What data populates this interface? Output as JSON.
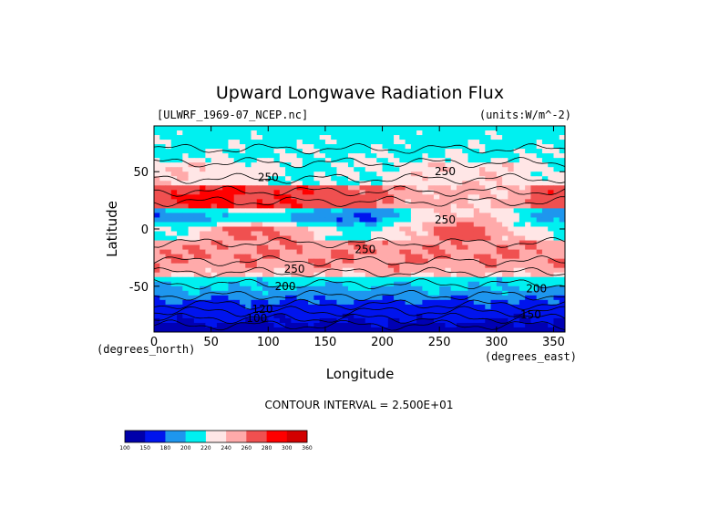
{
  "chart_data": {
    "type": "heatmap",
    "title": "Upward Longwave Radiation Flux",
    "dataset_label": "[ULWRF_1969-07_NCEP.nc]",
    "units_label": "(units:W/m^-2)",
    "xlabel": "Longitude",
    "ylabel": "Latitude",
    "x_units": "(degrees_east)",
    "y_units": "(degrees_north)",
    "xlim": [
      0,
      360
    ],
    "ylim": [
      -90,
      90
    ],
    "x_ticks": [
      0,
      50,
      100,
      150,
      200,
      250,
      300,
      350
    ],
    "y_ticks": [
      -50,
      0,
      50
    ],
    "contour_interval_label": "CONTOUR INTERVAL = 2.500E+01",
    "contour_labels": [
      {
        "text": "250",
        "lon": 100,
        "lat": 45
      },
      {
        "text": "250",
        "lon": 255,
        "lat": 50
      },
      {
        "text": "250",
        "lon": 255,
        "lat": 8
      },
      {
        "text": "250",
        "lon": 185,
        "lat": -18
      },
      {
        "text": "250",
        "lon": 123,
        "lat": -35
      },
      {
        "text": "200",
        "lon": 115,
        "lat": -50
      },
      {
        "text": "200",
        "lon": 335,
        "lat": -52
      },
      {
        "text": "150",
        "lon": 330,
        "lat": -75
      },
      {
        "text": "120",
        "lon": 95,
        "lat": -70
      },
      {
        "text": "100",
        "lon": 90,
        "lat": -78
      }
    ],
    "colorbar": {
      "boundaries": [
        "100",
        "150",
        "180",
        "200",
        "220",
        "240",
        "260",
        "280",
        "300",
        "360"
      ],
      "colors": [
        "#0000aa",
        "#0014ee",
        "#1e96ee",
        "#00f0f0",
        "#ffe6e6",
        "#ffaaaa",
        "#f05050",
        "#ff0000",
        "#d20000"
      ]
    },
    "grid": false,
    "field_description_colors": {
      "deep_blue": "#0000b4",
      "blue": "#0014ee",
      "light_blue": "#1e96ee",
      "cyan": "#00f0f0",
      "pale_pink": "#ffe6e6",
      "pink": "#ffaaaa",
      "salmon": "#f05050",
      "red": "#ff0000"
    }
  }
}
